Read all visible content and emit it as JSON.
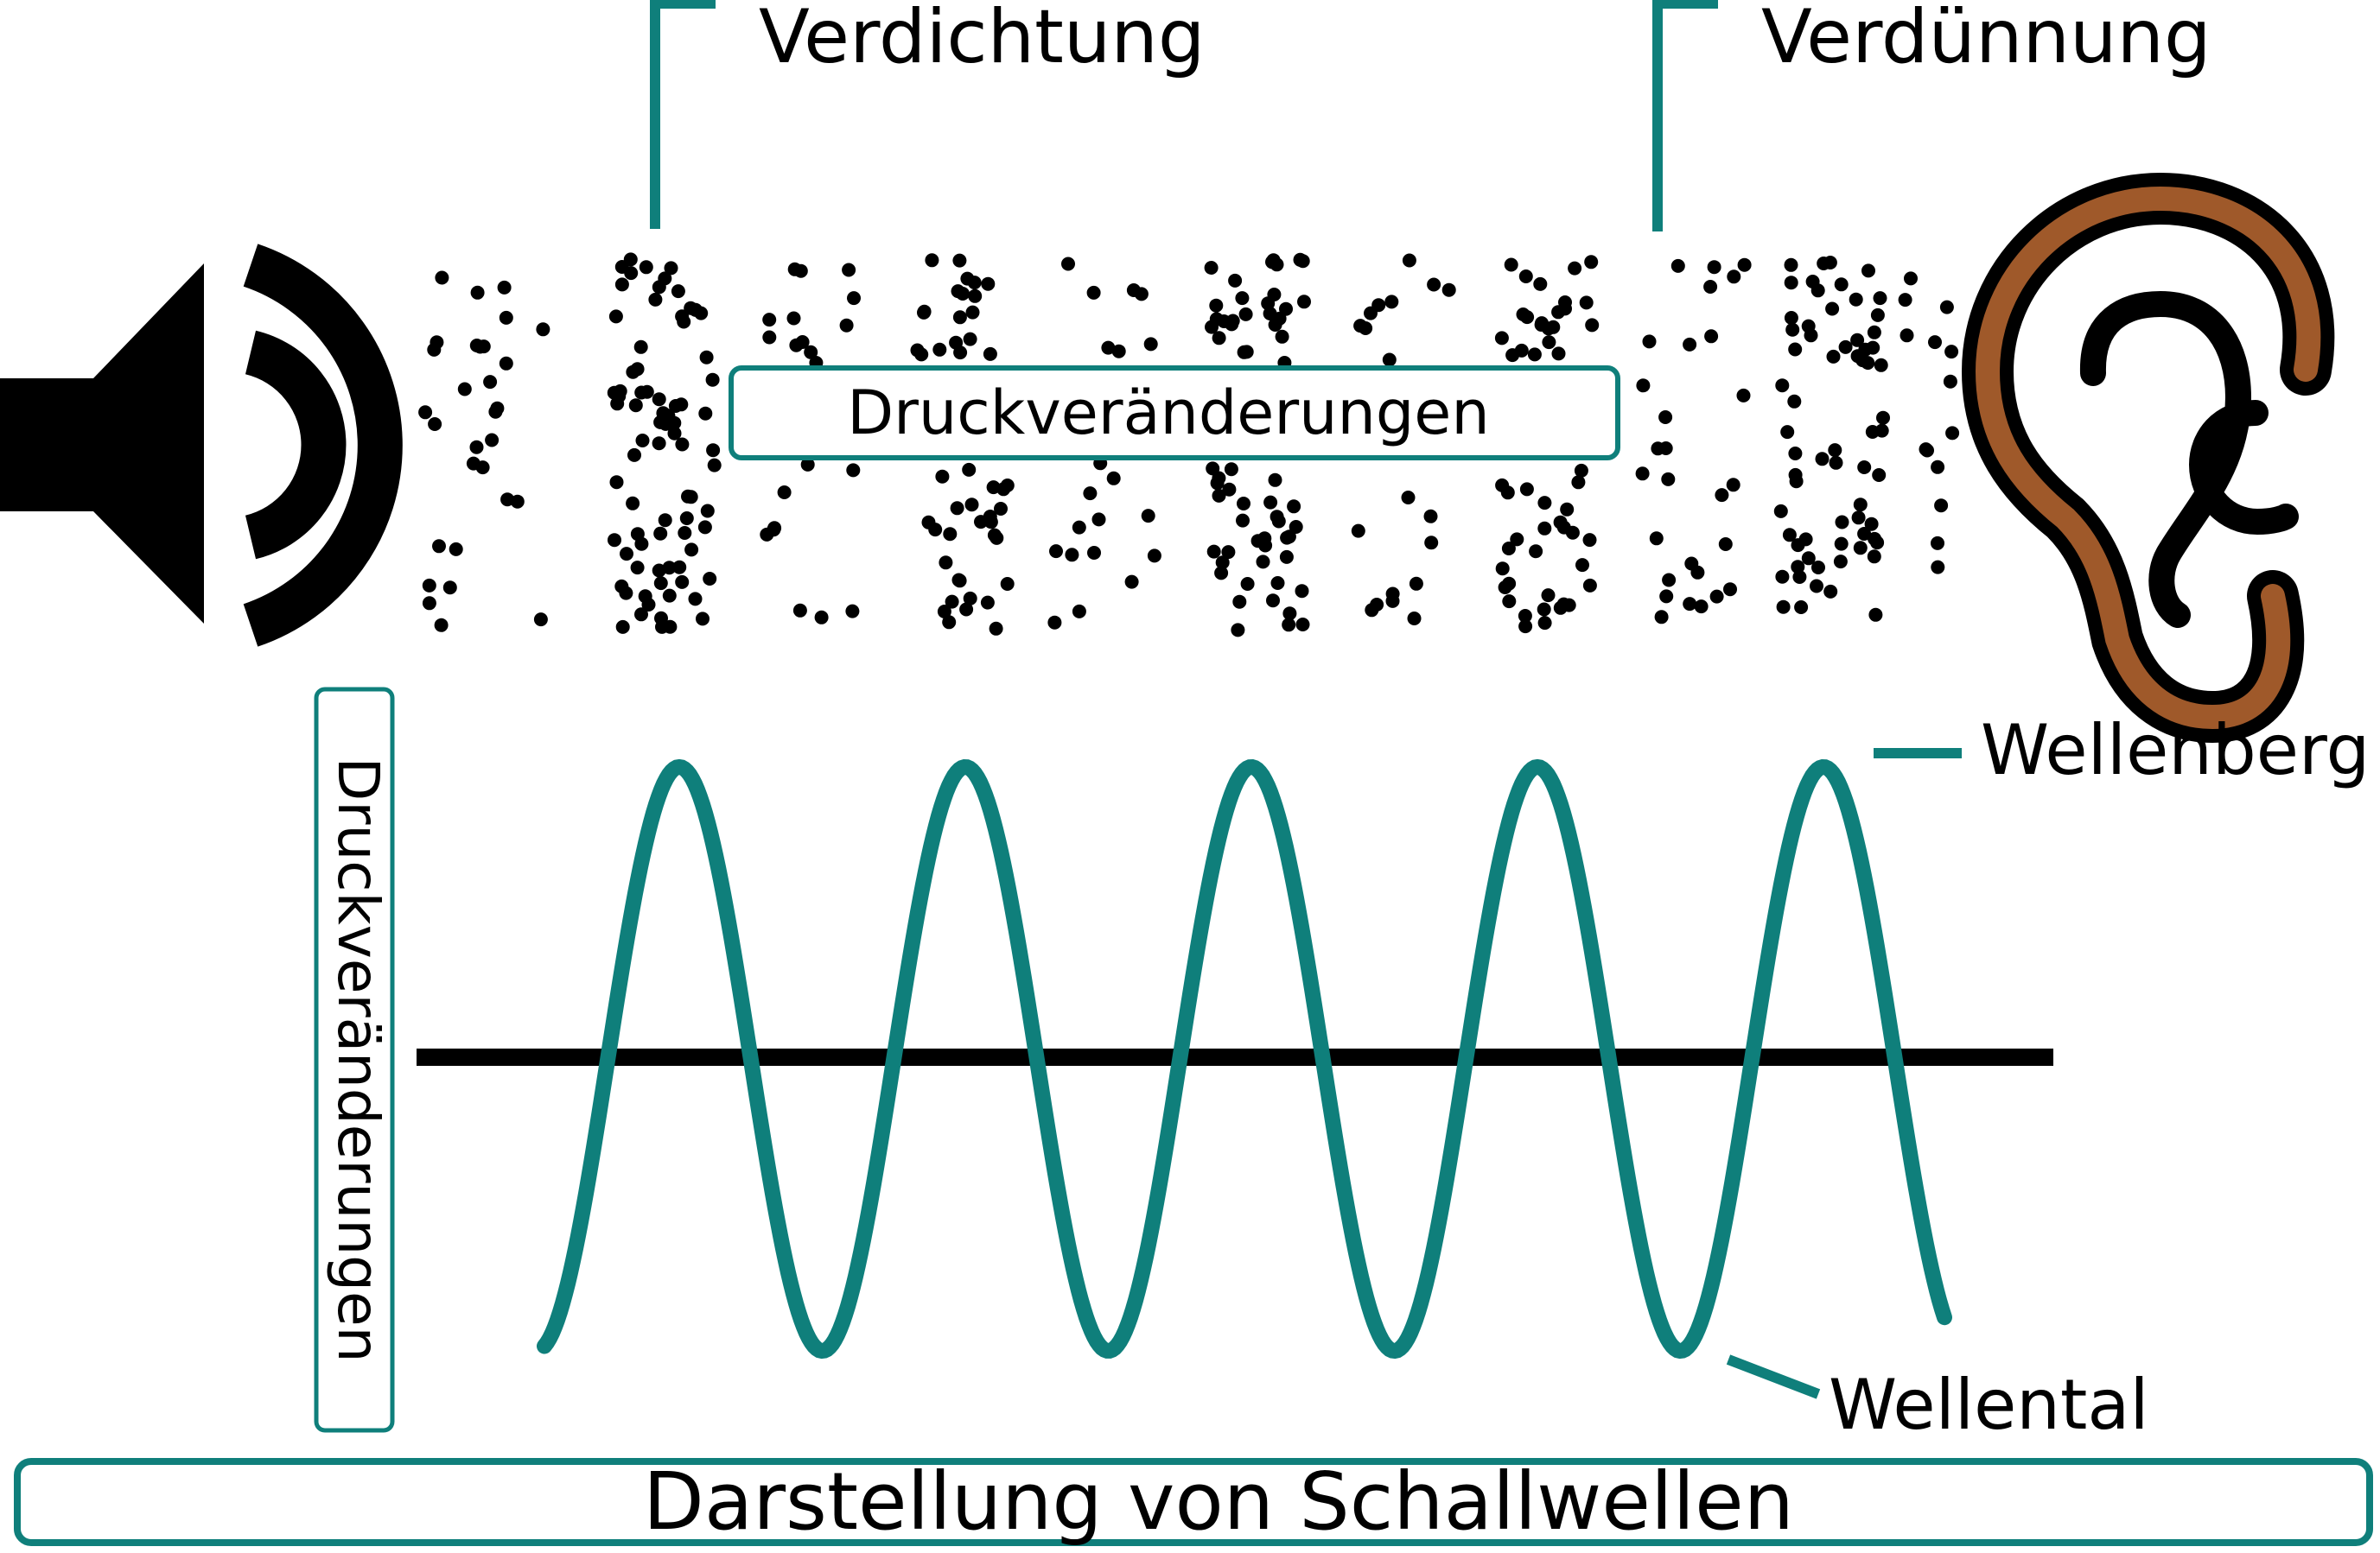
{
  "labels": {
    "compression": "Verdichtung",
    "rarefaction": "Verdünnung",
    "pressure_changes_particles": "Druckveränderungen",
    "pressure_changes_axis": "Druckveränderungen",
    "crest": "Wellenberg",
    "trough": "Wellental",
    "caption": "Darstellung von Schallwellen"
  },
  "icons": {
    "source": "loudspeaker-icon",
    "receiver": "ear-icon"
  },
  "colors": {
    "wave": "#0f7f7b",
    "ink": "#000000",
    "ear": "#9f592a",
    "background": "#ffffff"
  },
  "wave": {
    "cycles_shown": 5,
    "crests": 5,
    "troughs": 5
  }
}
